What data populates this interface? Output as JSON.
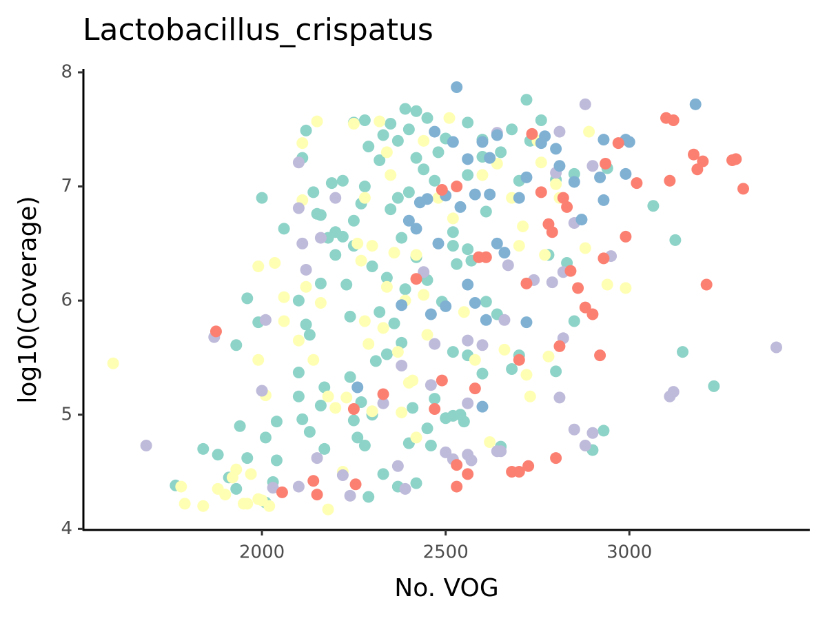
{
  "chart_data": {
    "type": "scatter",
    "title": "Lactobacillus_crispatus",
    "x_label": "No. VOG",
    "y_label": "log10(Coverage)",
    "xlim": [
      1514,
      3491
    ],
    "ylim": [
      3.99,
      8.03
    ],
    "xticks": [
      2000,
      2500,
      3000
    ],
    "yticks": [
      4,
      5,
      6,
      7,
      8
    ],
    "grid": false,
    "series": [
      {
        "color": "#8dd3c7",
        "x": [
          1765,
          1840,
          1880,
          1910,
          1930,
          1960,
          1940,
          1930,
          1960,
          1990,
          2000,
          2010,
          2040,
          2040,
          2010,
          2030,
          2060,
          2100,
          2100,
          2100,
          2110,
          2120,
          2130,
          2130,
          2140,
          2150,
          2160,
          2160,
          2170,
          2170,
          2190,
          2200,
          2220,
          2230,
          2240,
          2240,
          2250,
          2260,
          2270,
          2280,
          2290,
          2300,
          2310,
          2330,
          2340,
          2360,
          2370,
          2380,
          2400,
          2410,
          2420,
          2450,
          2460,
          2470,
          2490,
          2500,
          2520,
          2520,
          2530,
          2540,
          2550,
          2560,
          2570,
          2600,
          2610,
          2640,
          2650,
          2680,
          2700,
          2720,
          2730,
          2760,
          2780,
          2800,
          2800,
          2830,
          2850,
          2850,
          2900,
          2930,
          2940,
          3065,
          3125,
          3145,
          3230,
          2110,
          2120,
          2250,
          2280,
          2330,
          2390,
          2420,
          2450,
          2500,
          2560,
          2600,
          2680,
          2320,
          2280,
          2350,
          2400,
          2440,
          2480,
          2380,
          2300,
          2250,
          2340,
          2420,
          2200,
          2270,
          2370,
          2420,
          2290,
          2220,
          2160,
          2560,
          2600,
          2650,
          2700,
          2470,
          2520,
          2560,
          2390,
          2320,
          2450,
          2520,
          2610,
          2370,
          2250,
          2180,
          2350,
          2400
        ],
        "values": [
          4.38,
          4.7,
          4.65,
          4.45,
          4.35,
          4.62,
          4.9,
          5.61,
          6.02,
          5.81,
          6.9,
          4.8,
          4.6,
          4.94,
          4.23,
          4.41,
          6.63,
          6.0,
          5.37,
          5.16,
          4.96,
          5.79,
          5.7,
          4.85,
          6.95,
          6.76,
          6.15,
          5.08,
          5.24,
          4.7,
          7.03,
          6.6,
          6.56,
          6.14,
          5.86,
          5.33,
          4.95,
          4.8,
          5.11,
          4.73,
          4.28,
          5.0,
          5.47,
          4.48,
          5.53,
          5.8,
          4.37,
          5.63,
          4.75,
          5.06,
          4.4,
          4.88,
          4.73,
          5.14,
          5.99,
          4.97,
          4.99,
          5.55,
          6.32,
          5.0,
          4.94,
          5.52,
          6.35,
          5.36,
          5.99,
          5.88,
          4.72,
          5.4,
          5.52,
          7.76,
          7.4,
          7.58,
          6.4,
          5.38,
          7.06,
          6.33,
          7.11,
          5.82,
          4.69,
          4.86,
          7.16,
          6.83,
          6.53,
          5.55,
          5.25,
          7.25,
          7.49,
          7.56,
          7.58,
          7.45,
          7.68,
          7.66,
          7.6,
          7.42,
          7.56,
          7.41,
          7.5,
          7.23,
          7.0,
          6.8,
          6.95,
          7.15,
          7.3,
          6.55,
          6.3,
          6.48,
          6.2,
          6.38,
          6.4,
          6.85,
          7.4,
          7.25,
          7.35,
          7.05,
          6.75,
          7.1,
          7.26,
          7.3,
          7.05,
          7.05,
          6.6,
          6.45,
          6.1,
          5.9,
          6.18,
          6.48,
          6.78,
          6.9,
          6.7,
          6.55,
          7.55,
          7.5
        ]
      },
      {
        "color": "#ffffb3",
        "x": [
          1595,
          1780,
          1790,
          1840,
          1880,
          1900,
          1920,
          1930,
          1950,
          1960,
          1970,
          1990,
          1990,
          2000,
          2010,
          2020,
          1990,
          2035,
          2060,
          2060,
          2100,
          2110,
          2110,
          2120,
          2140,
          2150,
          2160,
          2180,
          2180,
          2200,
          2220,
          2230,
          2250,
          2260,
          2270,
          2280,
          2290,
          2300,
          2300,
          2320,
          2330,
          2340,
          2350,
          2360,
          2370,
          2380,
          2390,
          2400,
          2410,
          2420,
          2420,
          2440,
          2450,
          2480,
          2510,
          2520,
          2550,
          2580,
          2600,
          2620,
          2640,
          2660,
          2680,
          2700,
          2710,
          2720,
          2730,
          2750,
          2760,
          2770,
          2780,
          2800,
          2810,
          2880,
          2890,
          2940,
          2990,
          2340,
          2280,
          2440
        ],
        "values": [
          5.45,
          4.37,
          4.22,
          4.2,
          4.35,
          4.3,
          4.45,
          4.52,
          4.22,
          4.22,
          4.48,
          5.48,
          4.26,
          4.25,
          5.17,
          4.2,
          6.3,
          6.33,
          5.82,
          6.03,
          5.65,
          6.88,
          7.38,
          6.12,
          5.48,
          7.57,
          5.98,
          5.16,
          4.17,
          5.06,
          4.5,
          5.15,
          7.55,
          6.5,
          6.35,
          5.82,
          5.62,
          6.48,
          5.03,
          7.57,
          5.76,
          6.12,
          7.1,
          6.42,
          5.55,
          5.02,
          6.0,
          5.28,
          5.3,
          4.8,
          6.4,
          6.05,
          5.7,
          6.9,
          7.6,
          6.72,
          5.9,
          5.48,
          7.1,
          4.76,
          7.2,
          5.57,
          6.9,
          6.48,
          6.65,
          5.35,
          5.16,
          7.4,
          7.21,
          6.4,
          5.51,
          7.02,
          6.9,
          6.46,
          7.48,
          6.14,
          6.11,
          7.3,
          6.9,
          7.4
        ]
      },
      {
        "color": "#bebada",
        "x": [
          1685,
          1870,
          2030,
          2000,
          2010,
          2100,
          2110,
          2120,
          2100,
          2160,
          2200,
          2240,
          2220,
          2150,
          2100,
          2330,
          2370,
          2390,
          2380,
          2440,
          2460,
          2470,
          2500,
          2520,
          2560,
          2570,
          2560,
          2560,
          2600,
          2640,
          2650,
          2660,
          2670,
          2640,
          2740,
          2790,
          2800,
          2810,
          2810,
          2820,
          2820,
          2850,
          2850,
          2880,
          2900,
          2880,
          2900,
          2950,
          3110,
          3120,
          3400
        ],
        "values": [
          4.73,
          5.68,
          4.36,
          5.21,
          5.83,
          6.81,
          6.5,
          6.27,
          7.21,
          6.55,
          6.9,
          4.29,
          4.47,
          4.62,
          4.37,
          5.1,
          4.55,
          4.35,
          5.43,
          6.25,
          5.26,
          5.62,
          4.67,
          4.61,
          4.65,
          4.6,
          5.1,
          5.65,
          5.61,
          4.68,
          4.68,
          5.83,
          6.31,
          7.47,
          6.18,
          6.16,
          7.12,
          7.48,
          5.15,
          5.67,
          6.25,
          6.68,
          4.87,
          4.73,
          4.84,
          7.72,
          7.18,
          6.39,
          5.16,
          5.2,
          5.59
        ]
      },
      {
        "color": "#80b1d3",
        "x": [
          2530,
          3180,
          2990,
          3000,
          2930,
          2920,
          2930,
          2990,
          2870,
          2850,
          2810,
          2800,
          2770,
          2760,
          2720,
          2720,
          2700,
          2640,
          2660,
          2610,
          2600,
          2620,
          2580,
          2560,
          2540,
          2520,
          2500,
          2480,
          2470,
          2450,
          2420,
          2400,
          2380,
          2430,
          2560,
          2580,
          2500,
          2460,
          2260,
          2620,
          2640,
          2600
        ],
        "values": [
          7.87,
          7.72,
          7.41,
          7.39,
          7.41,
          7.08,
          6.88,
          7.11,
          6.71,
          7.04,
          7.18,
          7.33,
          7.44,
          7.38,
          7.08,
          5.81,
          6.9,
          6.5,
          6.42,
          5.83,
          5.07,
          6.93,
          6.93,
          7.24,
          6.82,
          7.39,
          6.92,
          6.5,
          7.48,
          6.89,
          6.63,
          6.7,
          5.96,
          6.86,
          6.14,
          5.98,
          5.95,
          5.88,
          5.24,
          7.25,
          7.45,
          7.39
        ]
      },
      {
        "color": "#fb8072",
        "x": [
          1875,
          2055,
          2140,
          2150,
          2255,
          2250,
          2330,
          2420,
          2490,
          2470,
          2530,
          2530,
          2560,
          2580,
          2590,
          2610,
          2490,
          2530,
          2680,
          2700,
          2725,
          2700,
          2720,
          2735,
          2760,
          2780,
          2790,
          2800,
          2810,
          2820,
          2830,
          2840,
          2860,
          2880,
          2900,
          2920,
          2930,
          2935,
          2970,
          2990,
          3020,
          3100,
          3120,
          3110,
          3175,
          3185,
          3200,
          3210,
          3280,
          3290,
          3310
        ],
        "values": [
          5.73,
          4.32,
          4.42,
          4.3,
          4.39,
          5.05,
          5.18,
          6.19,
          5.3,
          5.05,
          4.56,
          4.37,
          4.48,
          5.23,
          6.38,
          6.38,
          6.97,
          7.0,
          4.5,
          4.5,
          4.55,
          5.48,
          6.15,
          7.46,
          6.95,
          6.67,
          6.6,
          4.62,
          5.6,
          6.9,
          6.82,
          6.26,
          6.11,
          5.94,
          5.88,
          5.52,
          6.37,
          7.2,
          7.38,
          6.56,
          7.03,
          7.6,
          7.58,
          7.05,
          7.28,
          7.15,
          7.22,
          6.14,
          7.23,
          7.24,
          6.98
        ]
      }
    ]
  }
}
